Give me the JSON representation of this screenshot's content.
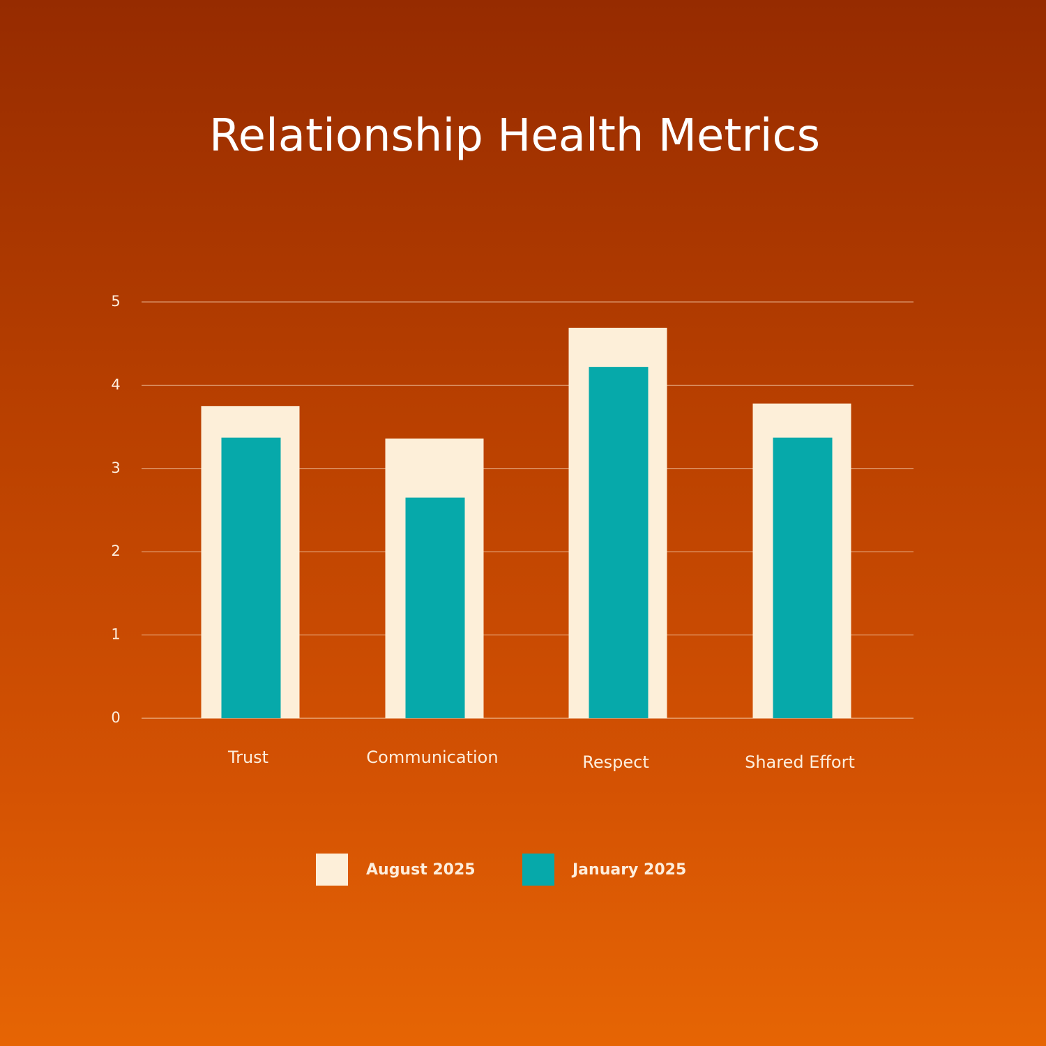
{
  "chart_data": {
    "type": "bar",
    "title": "Relationship Health Metrics",
    "xlabel": "",
    "ylabel": "",
    "categories": [
      "Trust",
      "Communication",
      "Respect",
      "Shared Effort"
    ],
    "series": [
      {
        "name": "August 2025",
        "values": [
          3.75,
          3.36,
          4.69,
          3.78
        ],
        "color": "#fdefd9"
      },
      {
        "name": "January 2025",
        "values": [
          3.37,
          2.65,
          4.22,
          3.37
        ],
        "color": "#06a9aa"
      }
    ],
    "ylim": [
      0,
      5
    ],
    "yticks": [
      "0",
      "1",
      "2",
      "3",
      "4",
      "5"
    ],
    "grid": true,
    "legend_position": "bottom-center"
  }
}
